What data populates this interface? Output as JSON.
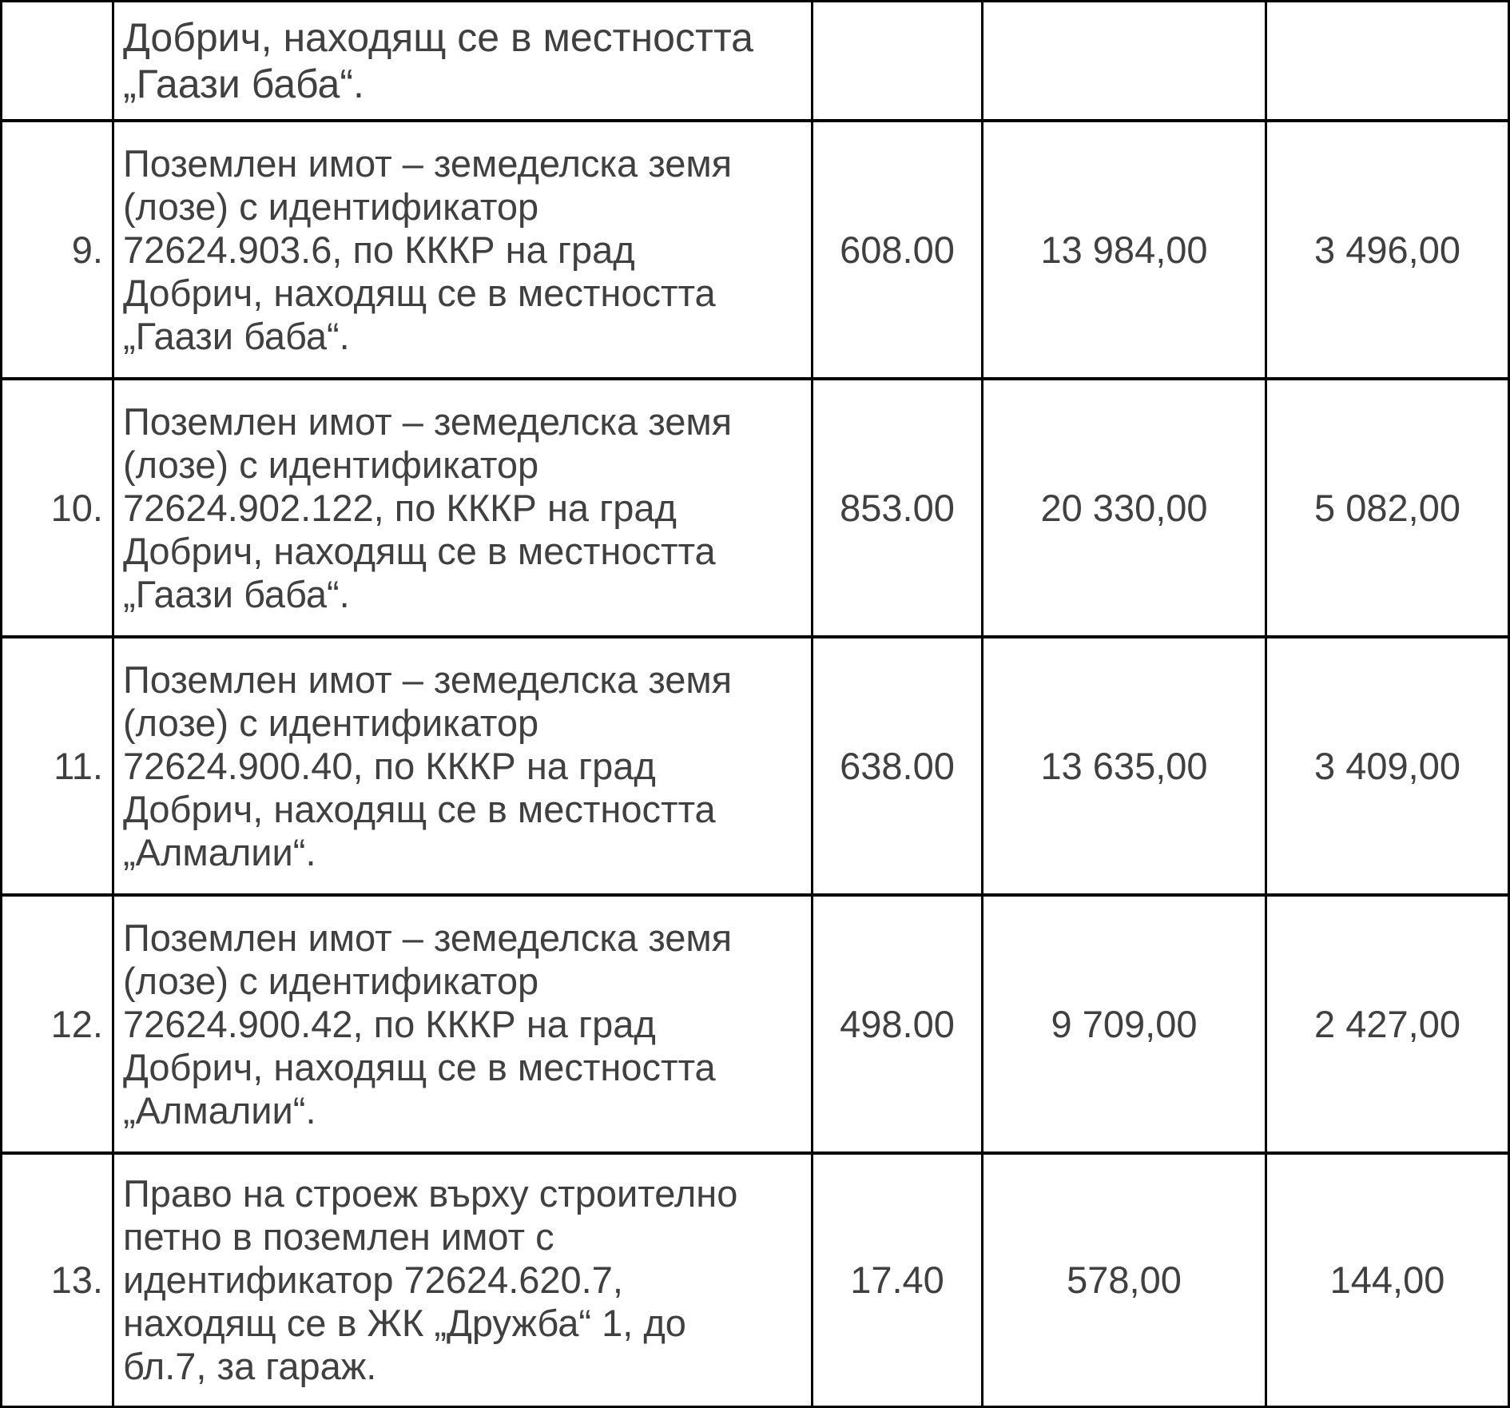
{
  "colors": {
    "background": "#ffffff",
    "border": "#000000",
    "text": "#404040"
  },
  "table": {
    "partial_row": {
      "num": "",
      "description": "Добрич, находящ се в местността „Гаази баба“.",
      "description_lines": [
        "Добрич, находящ се в местността",
        "„Гаази баба“."
      ],
      "area": "",
      "value": "",
      "tax_value": ""
    },
    "rows": [
      {
        "num": "9.",
        "description": "Поземлен имот – земеделска земя (лозе) с идентификатор 72624.903.6, по КККР на град Добрич, находящ се в местността „Гаази баба“.",
        "description_lines": [
          "Поземлен имот – земеделска земя",
          "(лозе) с идентификатор",
          "72624.903.6, по КККР на град",
          "Добрич, находящ се в местността",
          "„Гаази баба“."
        ],
        "area": "608.00",
        "value": "13 984,00",
        "tax_value": "3 496,00"
      },
      {
        "num": "10.",
        "description": "Поземлен имот – земеделска земя (лозе) с идентификатор 72624.902.122, по КККР на град Добрич, находящ се в местността „Гаази баба“.",
        "description_lines": [
          "Поземлен имот – земеделска земя",
          "(лозе) с идентификатор",
          "72624.902.122, по КККР на град",
          "Добрич, находящ се в местността",
          "„Гаази баба“."
        ],
        "area": "853.00",
        "value": "20 330,00",
        "tax_value": "5 082,00"
      },
      {
        "num": "11.",
        "description": "Поземлен имот – земеделска земя (лозе) с идентификатор 72624.900.40, по КККР на град Добрич, находящ се в местността „Алмалии“.",
        "description_lines": [
          "Поземлен имот – земеделска земя",
          "(лозе) с идентификатор",
          "72624.900.40, по КККР на град",
          "Добрич, находящ се в местността",
          "„Алмалии“."
        ],
        "area": "638.00",
        "value": "13 635,00",
        "tax_value": "3 409,00"
      },
      {
        "num": "12.",
        "description": "Поземлен имот – земеделска земя (лозе) с идентификатор 72624.900.42, по КККР на град Добрич, находящ се в местността „Алмалии“.",
        "description_lines": [
          "Поземлен имот – земеделска земя",
          "(лозе) с идентификатор",
          "72624.900.42, по КККР на град",
          "Добрич, находящ се в местността",
          "„Алмалии“."
        ],
        "area": "498.00",
        "value": "9 709,00",
        "tax_value": "2 427,00"
      },
      {
        "num": "13.",
        "description": "Право на строеж върху строително петно в поземлен имот с идентификатор 72624.620.7, находящ се в ЖК „Дружба“ 1, до бл.7, за гараж.",
        "description_lines": [
          "Право на строеж върху строително",
          "петно в поземлен имот с",
          "идентификатор 72624.620.7,",
          "находящ се в ЖК „Дружба“ 1, до",
          "бл.7, за гараж."
        ],
        "area": "17.40",
        "value": "578,00",
        "tax_value": "144,00"
      }
    ]
  }
}
